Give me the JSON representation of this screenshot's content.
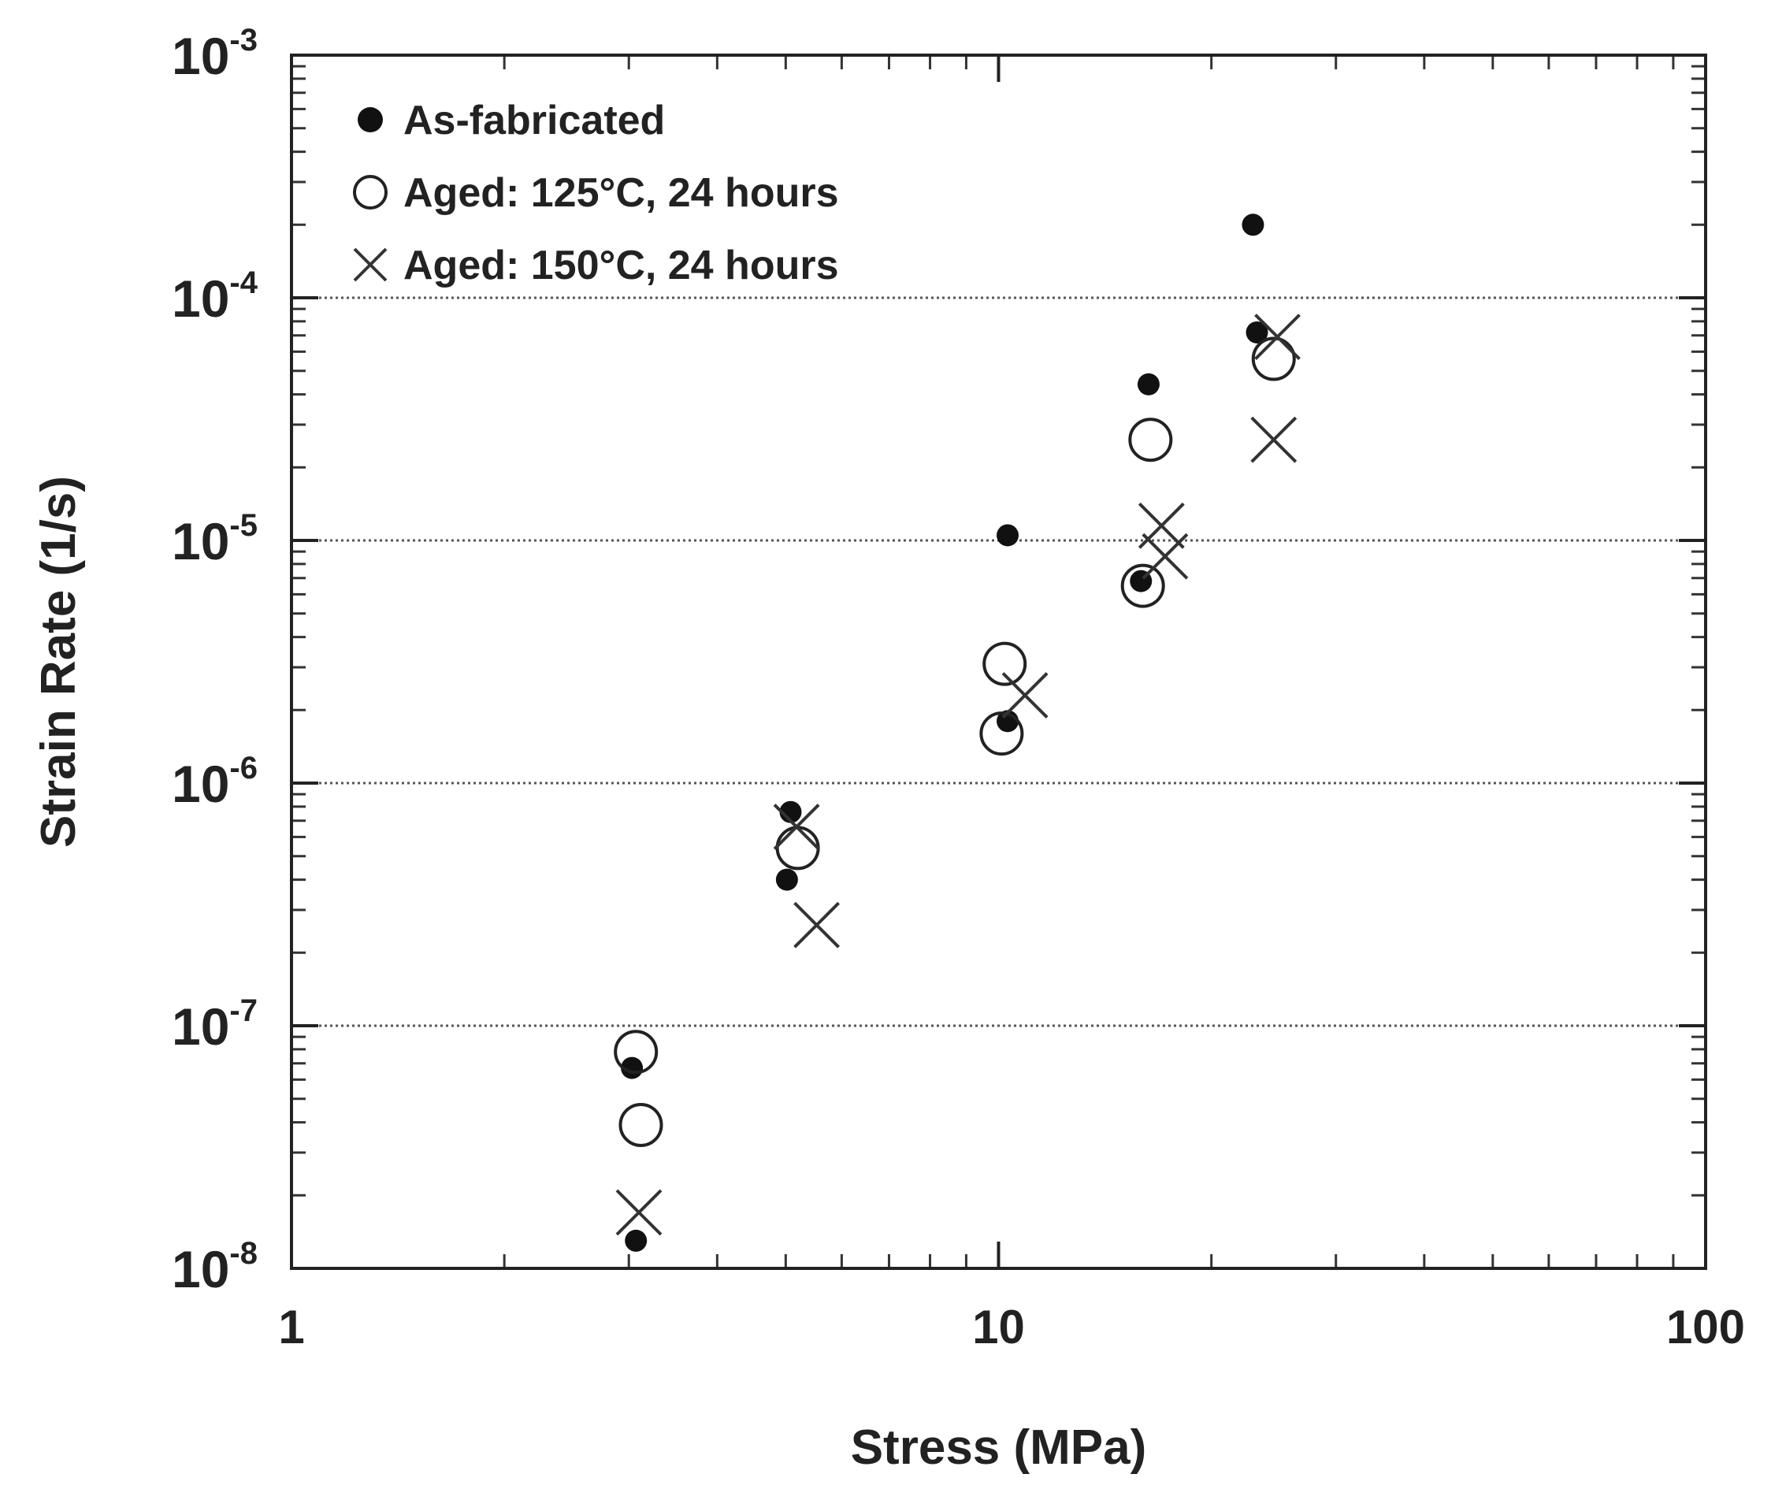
{
  "chart_data": {
    "type": "scatter",
    "title": "",
    "xlabel": "Stress  (MPa)",
    "ylabel": "Strain Rate  (1/s)",
    "xscale": "log",
    "yscale": "log",
    "xlim": [
      1,
      100
    ],
    "ylim": [
      1e-08,
      0.001
    ],
    "grid": "horizontal dotted lines at major y ticks",
    "legend_position": "top-left",
    "x_ticks": [
      {
        "value": 1,
        "label": "1"
      },
      {
        "value": 10,
        "label": "10"
      },
      {
        "value": 100,
        "label": "100"
      }
    ],
    "y_ticks": [
      {
        "value": 1e-08,
        "base": "10",
        "exp": "-8"
      },
      {
        "value": 1e-07,
        "base": "10",
        "exp": "-7"
      },
      {
        "value": 1e-06,
        "base": "10",
        "exp": "-6"
      },
      {
        "value": 1e-05,
        "base": "10",
        "exp": "-5"
      },
      {
        "value": 0.0001,
        "base": "10",
        "exp": "-4"
      },
      {
        "value": 0.001,
        "base": "10",
        "exp": "-3"
      }
    ],
    "series": [
      {
        "name": "As-fabricated",
        "marker": "filled-circle",
        "color": "#111111",
        "points": [
          [
            3.07,
            1.3e-08
          ],
          [
            3.03,
            6.7e-08
          ],
          [
            5.02,
            4e-07
          ],
          [
            5.08,
            7.6e-07
          ],
          [
            10.3,
            1.8e-06
          ],
          [
            10.3,
            1.05e-05
          ],
          [
            15.9,
            6.8e-06
          ],
          [
            16.3,
            4.4e-05
          ],
          [
            22.9,
            0.0002
          ],
          [
            23.2,
            7.2e-05
          ]
        ]
      },
      {
        "name": "Aged: 125°C, 24 hours",
        "marker": "open-circle",
        "color": "#222222",
        "points": [
          [
            3.07,
            7.8e-08
          ],
          [
            3.12,
            3.9e-08
          ],
          [
            5.2,
            5.4e-07
          ],
          [
            10.2,
            3.1e-06
          ],
          [
            10.1,
            1.6e-06
          ],
          [
            16.0,
            6.5e-06
          ],
          [
            16.4,
            2.6e-05
          ],
          [
            24.5,
            5.6e-05
          ]
        ]
      },
      {
        "name": "Aged: 150°C, 24 hours",
        "marker": "cross",
        "color": "#333333",
        "points": [
          [
            3.1,
            1.7e-08
          ],
          [
            5.18,
            6.6e-07
          ],
          [
            5.53,
            2.6e-07
          ],
          [
            10.9,
            2.3e-06
          ],
          [
            17.0,
            1.15e-05
          ],
          [
            17.2,
            8.6e-06
          ],
          [
            24.8,
            6.9e-05
          ],
          [
            24.5,
            2.6e-05
          ]
        ]
      }
    ]
  }
}
